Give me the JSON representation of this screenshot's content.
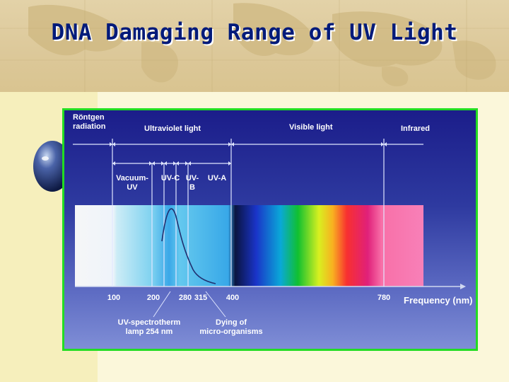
{
  "title": "DNA Damaging Range of UV Light",
  "diagram": {
    "top_labels": {
      "rontgen_line1": "Röntgen",
      "rontgen_line2": "radiation",
      "ultraviolet": "Ultraviolet light",
      "visible": "Visible light",
      "infrared": "Infrared"
    },
    "bands": {
      "vacuum_line1": "Vacuum-",
      "vacuum_line2": "UV",
      "uvc": "UV-C",
      "uvb_line1": "UV-",
      "uvb_line2": "B",
      "uva": "UV-A"
    },
    "ticks": [
      "100",
      "200",
      "280",
      "315",
      "400",
      "780"
    ],
    "axis_label": "Frequency (nm)",
    "notes": {
      "lamp_line1": "UV-spectrotherm",
      "lamp_line2": "lamp 254 nm",
      "dying_line1": "Dying of",
      "dying_line2": "micro-organisms"
    },
    "colors": {
      "panel_border": "#22dd22",
      "panel_bg": "#2e3aa0",
      "title": "#001a7a"
    }
  }
}
